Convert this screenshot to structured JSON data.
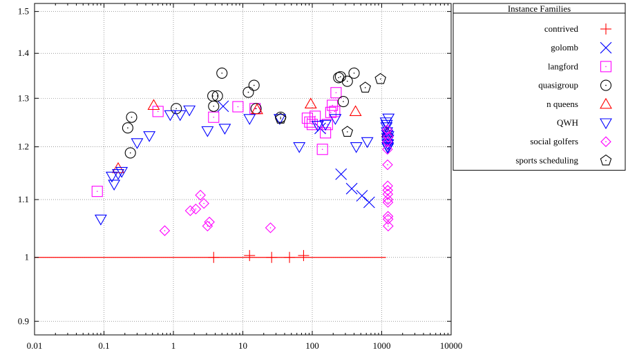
{
  "chart_data": {
    "type": "scatter",
    "xscale": "log",
    "yscale": "log",
    "xlim": [
      0.01,
      10000
    ],
    "ylim": [
      0.88,
      1.52
    ],
    "grid": true,
    "legend_placement": "outside-right",
    "legend_title": "Instance Families",
    "x_ticks": [
      "0.01",
      "0.1",
      "1",
      "10",
      "100",
      "1000",
      "10000"
    ],
    "y_ticks": [
      "0.9",
      "1",
      "1.1",
      "1.2",
      "1.3",
      "1.4",
      "1.5"
    ],
    "x_tick_values": [
      0.01,
      0.1,
      1,
      10,
      100,
      1000,
      10000
    ],
    "y_tick_values": [
      0.9,
      1.0,
      1.1,
      1.2,
      1.3,
      1.4,
      1.5
    ],
    "reference_line": {
      "y": 1.0,
      "x_range": [
        0.01,
        1150
      ],
      "color": "#ff0000"
    },
    "series": [
      {
        "name": "contrived",
        "marker": "plus",
        "color": "#ff0000",
        "points": [
          [
            3.8,
            1.0
          ],
          [
            12.5,
            1.003
          ],
          [
            26,
            1.0
          ],
          [
            47,
            1.0
          ],
          [
            75,
            1.003
          ]
        ]
      },
      {
        "name": "golomb",
        "marker": "x",
        "color": "#0000ff",
        "points": [
          [
            5.2,
            1.283
          ],
          [
            130,
            1.237
          ],
          [
            260,
            1.147
          ],
          [
            370,
            1.12
          ],
          [
            520,
            1.107
          ],
          [
            660,
            1.095
          ]
        ]
      },
      {
        "name": "langford",
        "marker": "square",
        "color": "#ff00ff",
        "points": [
          [
            0.08,
            1.115
          ],
          [
            0.6,
            1.272
          ],
          [
            3.8,
            1.26
          ],
          [
            8.5,
            1.282
          ],
          [
            15,
            1.278
          ],
          [
            85,
            1.258
          ],
          [
            92,
            1.25
          ],
          [
            100,
            1.245
          ],
          [
            110,
            1.262
          ],
          [
            140,
            1.195
          ],
          [
            155,
            1.228
          ],
          [
            165,
            1.245
          ],
          [
            185,
            1.27
          ],
          [
            195,
            1.285
          ],
          [
            210,
            1.272
          ],
          [
            220,
            1.312
          ]
        ]
      },
      {
        "name": "quasigroup",
        "marker": "circle-dot",
        "color": "#000000",
        "points": [
          [
            0.22,
            1.238
          ],
          [
            0.25,
            1.26
          ],
          [
            0.24,
            1.188
          ],
          [
            1.1,
            1.278
          ],
          [
            3.7,
            1.305
          ],
          [
            3.8,
            1.283
          ],
          [
            4.3,
            1.305
          ],
          [
            5.0,
            1.355
          ],
          [
            12,
            1.313
          ],
          [
            14.5,
            1.328
          ],
          [
            15.5,
            1.278
          ],
          [
            35,
            1.26
          ],
          [
            240,
            1.345
          ],
          [
            255,
            1.347
          ],
          [
            280,
            1.293
          ],
          [
            320,
            1.337
          ],
          [
            400,
            1.355
          ]
        ]
      },
      {
        "name": "n queens",
        "marker": "triangle-up",
        "color": "#ff0000",
        "points": [
          [
            0.16,
            1.158
          ],
          [
            0.52,
            1.285
          ],
          [
            16,
            1.276
          ],
          [
            95,
            1.288
          ],
          [
            420,
            1.272
          ],
          [
            1200,
            1.228
          ]
        ]
      },
      {
        "name": "QWH",
        "marker": "triangle-down",
        "color": "#0000ff",
        "points": [
          [
            0.09,
            1.065
          ],
          [
            0.13,
            1.143
          ],
          [
            0.14,
            1.128
          ],
          [
            0.16,
            1.148
          ],
          [
            0.18,
            1.152
          ],
          [
            0.3,
            1.208
          ],
          [
            0.45,
            1.222
          ],
          [
            0.9,
            1.265
          ],
          [
            1.25,
            1.265
          ],
          [
            1.7,
            1.275
          ],
          [
            3.1,
            1.232
          ],
          [
            5.5,
            1.237
          ],
          [
            12.5,
            1.257
          ],
          [
            34,
            1.257
          ],
          [
            65,
            1.2
          ],
          [
            120,
            1.243
          ],
          [
            155,
            1.245
          ],
          [
            215,
            1.257
          ],
          [
            430,
            1.2
          ],
          [
            620,
            1.21
          ],
          [
            1150,
            1.25
          ],
          [
            1170,
            1.24
          ],
          [
            1180,
            1.245
          ],
          [
            1190,
            1.23
          ],
          [
            1200,
            1.225
          ],
          [
            1205,
            1.218
          ],
          [
            1210,
            1.212
          ],
          [
            1215,
            1.206
          ],
          [
            1220,
            1.2
          ],
          [
            1225,
            1.198
          ],
          [
            1230,
            1.205
          ],
          [
            1235,
            1.215
          ],
          [
            1240,
            1.222
          ],
          [
            1250,
            1.258
          ]
        ]
      },
      {
        "name": "social golfers",
        "marker": "diamond",
        "color": "#ff00ff",
        "points": [
          [
            0.75,
            1.045
          ],
          [
            2.1,
            1.083
          ],
          [
            2.45,
            1.108
          ],
          [
            2.75,
            1.093
          ],
          [
            3.1,
            1.053
          ],
          [
            3.3,
            1.06
          ],
          [
            1.75,
            1.08
          ],
          [
            25,
            1.05
          ],
          [
            1200,
            1.234
          ],
          [
            1205,
            1.21
          ],
          [
            1210,
            1.195
          ],
          [
            1215,
            1.165
          ],
          [
            1220,
            1.125
          ],
          [
            1222,
            1.117
          ],
          [
            1225,
            1.11
          ],
          [
            1228,
            1.1
          ],
          [
            1230,
            1.095
          ],
          [
            1232,
            1.07
          ],
          [
            1235,
            1.065
          ],
          [
            1240,
            1.053
          ],
          [
            1245,
            1.22
          ]
        ]
      },
      {
        "name": "sports scheduling",
        "marker": "pentagon",
        "color": "#000000",
        "points": [
          [
            35,
            1.257
          ],
          [
            320,
            1.23
          ],
          [
            580,
            1.323
          ],
          [
            960,
            1.342
          ]
        ]
      }
    ]
  }
}
